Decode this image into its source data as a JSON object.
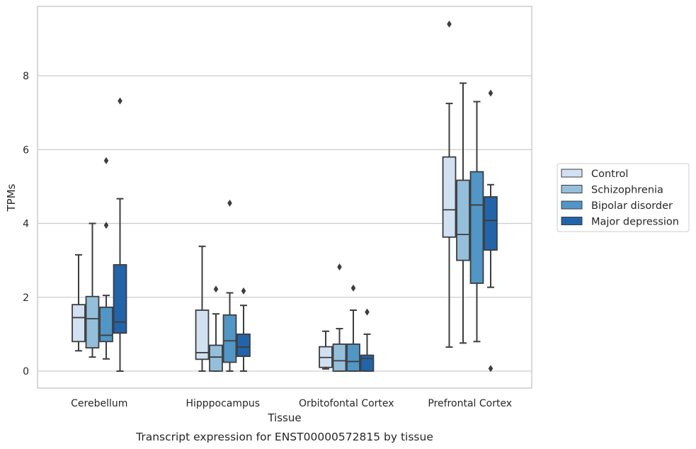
{
  "chart_data": {
    "type": "box",
    "caption": "Transcript expression for ENST00000572815 by tissue",
    "xlabel": "Tissue",
    "ylabel": "TPMs",
    "ylim": [
      -0.45,
      9.9
    ],
    "yticks": [
      0,
      2,
      4,
      6,
      8
    ],
    "grid": true,
    "legend_position": "right",
    "categories": [
      "Cerebellum",
      "Hipppocampus",
      "Orbitofontal Cortex",
      "Prefrontal Cortex"
    ],
    "series": [
      {
        "name": "Control",
        "color": "#d1e1f1",
        "boxes": [
          {
            "whisker_low": 0.55,
            "q1": 0.8,
            "median": 1.45,
            "q3": 1.8,
            "whisker_high": 3.15,
            "outliers": []
          },
          {
            "whisker_low": 0.0,
            "q1": 0.32,
            "median": 0.5,
            "q3": 1.65,
            "whisker_high": 3.38,
            "outliers": []
          },
          {
            "whisker_low": 0.06,
            "q1": 0.1,
            "median": 0.37,
            "q3": 0.66,
            "whisker_high": 1.08,
            "outliers": []
          },
          {
            "whisker_low": 0.65,
            "q1": 3.63,
            "median": 4.37,
            "q3": 5.8,
            "whisker_high": 7.25,
            "outliers": [
              9.4
            ]
          }
        ]
      },
      {
        "name": "Schizophrenia",
        "color": "#94bfdb",
        "boxes": [
          {
            "whisker_low": 0.38,
            "q1": 0.63,
            "median": 1.42,
            "q3": 2.02,
            "whisker_high": 4.0,
            "outliers": []
          },
          {
            "whisker_low": 0.0,
            "q1": 0.0,
            "median": 0.38,
            "q3": 0.7,
            "whisker_high": 1.55,
            "outliers": [
              2.22
            ]
          },
          {
            "whisker_low": 0.0,
            "q1": 0.0,
            "median": 0.28,
            "q3": 0.73,
            "whisker_high": 1.15,
            "outliers": [
              2.82
            ]
          },
          {
            "whisker_low": 0.76,
            "q1": 3.0,
            "median": 3.7,
            "q3": 5.17,
            "whisker_high": 7.8,
            "outliers": []
          }
        ]
      },
      {
        "name": "Bipolar disorder",
        "color": "#5096c6",
        "boxes": [
          {
            "whisker_low": 0.33,
            "q1": 0.8,
            "median": 0.97,
            "q3": 1.73,
            "whisker_high": 2.05,
            "outliers": [
              3.95,
              5.7
            ]
          },
          {
            "whisker_low": 0.0,
            "q1": 0.24,
            "median": 0.82,
            "q3": 1.52,
            "whisker_high": 2.12,
            "outliers": [
              4.55
            ]
          },
          {
            "whisker_low": 0.0,
            "q1": 0.0,
            "median": 0.26,
            "q3": 0.73,
            "whisker_high": 1.65,
            "outliers": [
              2.25
            ]
          },
          {
            "whisker_low": 0.8,
            "q1": 2.38,
            "median": 4.5,
            "q3": 5.4,
            "whisker_high": 7.3,
            "outliers": []
          }
        ]
      },
      {
        "name": "Major depression",
        "color": "#2164aa",
        "boxes": [
          {
            "whisker_low": 0.0,
            "q1": 1.03,
            "median": 1.33,
            "q3": 2.88,
            "whisker_high": 4.67,
            "outliers": [
              7.32
            ]
          },
          {
            "whisker_low": 0.0,
            "q1": 0.4,
            "median": 0.65,
            "q3": 1.0,
            "whisker_high": 1.78,
            "outliers": [
              2.17
            ]
          },
          {
            "whisker_low": 0.0,
            "q1": 0.0,
            "median": 0.34,
            "q3": 0.43,
            "whisker_high": 1.0,
            "outliers": [
              1.6
            ]
          },
          {
            "whisker_low": 2.27,
            "q1": 3.28,
            "median": 4.08,
            "q3": 4.72,
            "whisker_high": 5.05,
            "outliers": [
              0.07,
              7.53
            ]
          }
        ]
      }
    ]
  }
}
